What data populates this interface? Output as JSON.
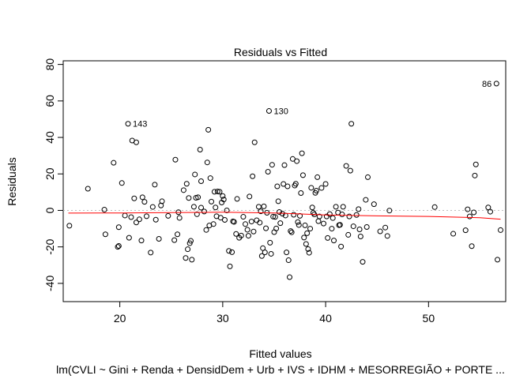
{
  "chart_data": {
    "type": "scatter",
    "title": "Residuals vs Fitted",
    "xlabel": "Fitted values",
    "ylabel": "Residuals",
    "caption": "lm(CVLI ~ Gini + Renda + DensidDem + Urb + IVS + IDHM + MESORREGIÃO + PORTE ...",
    "xlim": [
      14.5,
      57.5
    ],
    "ylim": [
      -50,
      82
    ],
    "x_ticks": [
      20,
      30,
      40,
      50
    ],
    "x_tick_labels": [
      "20",
      "30",
      "40",
      "50"
    ],
    "y_ticks": [
      -40,
      -20,
      0,
      20,
      40,
      60,
      80
    ],
    "y_tick_labels": [
      "-40",
      "-20",
      "0",
      "20",
      "40",
      "60",
      "80"
    ],
    "grid": false,
    "reference_line": {
      "y": 0,
      "style": "dotted",
      "color": "#bebebe"
    },
    "smoother_color": "#ff0000",
    "smoother": [
      [
        15,
        -1.5
      ],
      [
        20,
        -1.4
      ],
      [
        25,
        -1.2
      ],
      [
        30,
        -1.0
      ],
      [
        35,
        -1.4
      ],
      [
        40,
        -2.5
      ],
      [
        45,
        -3.0
      ],
      [
        50,
        -3.3
      ],
      [
        55,
        -4.0
      ],
      [
        57,
        -4.8
      ]
    ],
    "annotations": [
      {
        "label": "86",
        "x": 56.6,
        "y": 69.5
      },
      {
        "label": "130",
        "x": 34.5,
        "y": 54.5
      },
      {
        "label": "143",
        "x": 20.8,
        "y": 47.5
      }
    ],
    "points": [
      [
        15.1,
        -8.4
      ],
      [
        16.9,
        11.9
      ],
      [
        18.5,
        0.4
      ],
      [
        18.6,
        -13.1
      ],
      [
        19.4,
        26.1
      ],
      [
        19.8,
        -20.0
      ],
      [
        19.9,
        -19.5
      ],
      [
        19.9,
        -9.2
      ],
      [
        20.2,
        15.0
      ],
      [
        20.5,
        -2.8
      ],
      [
        20.8,
        47.5
      ],
      [
        20.9,
        -15.0
      ],
      [
        21.1,
        -3.7
      ],
      [
        21.2,
        38.3
      ],
      [
        21.4,
        6.6
      ],
      [
        21.6,
        37.3
      ],
      [
        21.6,
        -6.6
      ],
      [
        21.9,
        -4.9
      ],
      [
        22.1,
        -16.5
      ],
      [
        22.2,
        7.2
      ],
      [
        22.4,
        4.7
      ],
      [
        22.6,
        -3.2
      ],
      [
        23.0,
        -23.1
      ],
      [
        23.2,
        1.9
      ],
      [
        23.4,
        14.1
      ],
      [
        23.5,
        -5.1
      ],
      [
        23.8,
        -15.6
      ],
      [
        24.0,
        2.7
      ],
      [
        24.1,
        5.0
      ],
      [
        24.7,
        -3.0
      ],
      [
        25.3,
        -16.3
      ],
      [
        25.4,
        27.8
      ],
      [
        25.6,
        -13.1
      ],
      [
        25.7,
        -1.0
      ],
      [
        25.8,
        -4.1
      ],
      [
        26.2,
        11.1
      ],
      [
        26.4,
        -26.1
      ],
      [
        26.5,
        14.6
      ],
      [
        26.6,
        -21.3
      ],
      [
        26.7,
        6.8
      ],
      [
        26.8,
        -18.0
      ],
      [
        26.9,
        -16.7
      ],
      [
        27.0,
        -27.0
      ],
      [
        27.2,
        2.0
      ],
      [
        27.3,
        19.7
      ],
      [
        27.4,
        6.9
      ],
      [
        27.5,
        -2.1
      ],
      [
        27.6,
        7.2
      ],
      [
        27.8,
        33.3
      ],
      [
        27.9,
        16.0
      ],
      [
        27.9,
        1.5
      ],
      [
        28.2,
        -0.6
      ],
      [
        28.4,
        -10.7
      ],
      [
        28.5,
        26.3
      ],
      [
        28.6,
        44.2
      ],
      [
        28.7,
        -8.3
      ],
      [
        28.8,
        17.7
      ],
      [
        28.9,
        4.8
      ],
      [
        29.1,
        -7.5
      ],
      [
        29.2,
        10.2
      ],
      [
        29.3,
        1.6
      ],
      [
        29.4,
        -3.2
      ],
      [
        29.5,
        10.4
      ],
      [
        29.7,
        10.2
      ],
      [
        29.8,
        -4.0
      ],
      [
        29.9,
        4.3
      ],
      [
        30.0,
        7.9
      ],
      [
        30.1,
        6.0
      ],
      [
        30.2,
        -5.2
      ],
      [
        30.4,
        0.0
      ],
      [
        30.6,
        -22.2
      ],
      [
        30.7,
        -30.7
      ],
      [
        30.9,
        -22.9
      ],
      [
        31.0,
        -6.0
      ],
      [
        31.1,
        -6.3
      ],
      [
        31.3,
        -12.9
      ],
      [
        31.4,
        6.3
      ],
      [
        31.6,
        -15.0
      ],
      [
        31.8,
        -13.8
      ],
      [
        32.0,
        -3.5
      ],
      [
        32.2,
        -7.5
      ],
      [
        32.4,
        -10.6
      ],
      [
        32.5,
        -13.9
      ],
      [
        32.6,
        7.6
      ],
      [
        32.8,
        -6.1
      ],
      [
        32.9,
        18.7
      ],
      [
        33.0,
        -11.6
      ],
      [
        33.1,
        37.3
      ],
      [
        33.3,
        -5.4
      ],
      [
        33.5,
        2.0
      ],
      [
        33.6,
        -6.7
      ],
      [
        33.7,
        -0.5
      ],
      [
        33.8,
        -25.0
      ],
      [
        33.9,
        -20.7
      ],
      [
        34.0,
        2.2
      ],
      [
        34.1,
        -23.0
      ],
      [
        34.2,
        -9.8
      ],
      [
        34.3,
        -1.3
      ],
      [
        34.4,
        21.2
      ],
      [
        34.5,
        54.5
      ],
      [
        34.6,
        -17.7
      ],
      [
        34.7,
        -23.8
      ],
      [
        34.8,
        25.0
      ],
      [
        34.9,
        -3.4
      ],
      [
        35.0,
        -11.9
      ],
      [
        35.1,
        -3.6
      ],
      [
        35.2,
        -9.9
      ],
      [
        35.3,
        13.2
      ],
      [
        35.4,
        5.0
      ],
      [
        35.5,
        -0.9
      ],
      [
        35.6,
        -7.0
      ],
      [
        35.8,
        -1.8
      ],
      [
        35.9,
        14.5
      ],
      [
        36.0,
        24.8
      ],
      [
        36.1,
        -2.8
      ],
      [
        36.2,
        -23.0
      ],
      [
        36.3,
        13.2
      ],
      [
        36.4,
        -27.3
      ],
      [
        36.5,
        -36.6
      ],
      [
        36.6,
        -11.3
      ],
      [
        36.7,
        -12.0
      ],
      [
        36.8,
        28.2
      ],
      [
        36.9,
        -2.4
      ],
      [
        37.0,
        13.6
      ],
      [
        37.1,
        14.6
      ],
      [
        37.2,
        27.0
      ],
      [
        37.3,
        -6.4
      ],
      [
        37.4,
        -8.0
      ],
      [
        37.5,
        -3.0
      ],
      [
        37.6,
        9.5
      ],
      [
        37.7,
        31.3
      ],
      [
        37.8,
        19.3
      ],
      [
        37.9,
        -14.9
      ],
      [
        38.0,
        -8.2
      ],
      [
        38.1,
        -18.4
      ],
      [
        38.2,
        -12.5
      ],
      [
        38.3,
        -21.2
      ],
      [
        38.4,
        -23.2
      ],
      [
        38.5,
        -10.0
      ],
      [
        38.6,
        12.4
      ],
      [
        38.7,
        1.6
      ],
      [
        38.8,
        -1.3
      ],
      [
        38.9,
        -2.2
      ],
      [
        39.0,
        9.6
      ],
      [
        39.1,
        10.8
      ],
      [
        39.2,
        18.2
      ],
      [
        39.3,
        -5.9
      ],
      [
        39.4,
        -3.3
      ],
      [
        39.6,
        12.3
      ],
      [
        39.8,
        -7.2
      ],
      [
        40.0,
        14.5
      ],
      [
        40.1,
        -3.3
      ],
      [
        40.2,
        -15.1
      ],
      [
        40.4,
        -2.0
      ],
      [
        40.6,
        -10.0
      ],
      [
        40.7,
        -4.2
      ],
      [
        40.8,
        -16.5
      ],
      [
        41.0,
        2.0
      ],
      [
        41.2,
        -1.2
      ],
      [
        41.3,
        -8.1
      ],
      [
        41.4,
        -7.9
      ],
      [
        41.5,
        -19.8
      ],
      [
        41.6,
        -2.2
      ],
      [
        41.7,
        2.0
      ],
      [
        42.0,
        24.4
      ],
      [
        42.2,
        -13.4
      ],
      [
        42.3,
        -3.3
      ],
      [
        42.4,
        21.8
      ],
      [
        42.5,
        47.5
      ],
      [
        42.7,
        -8.7
      ],
      [
        43.0,
        -2.5
      ],
      [
        43.2,
        0.7
      ],
      [
        43.3,
        -10.4
      ],
      [
        43.4,
        -14.3
      ],
      [
        43.6,
        -28.2
      ],
      [
        43.9,
        5.8
      ],
      [
        44.0,
        -9.1
      ],
      [
        44.1,
        18.2
      ],
      [
        44.7,
        3.4
      ],
      [
        45.3,
        -11.5
      ],
      [
        45.8,
        -9.4
      ],
      [
        46.0,
        -14.0
      ],
      [
        46.2,
        -0.1
      ],
      [
        50.6,
        1.8
      ],
      [
        52.4,
        -12.8
      ],
      [
        53.6,
        -10.9
      ],
      [
        53.8,
        0.6
      ],
      [
        54.0,
        -3.3
      ],
      [
        54.2,
        -19.6
      ],
      [
        54.4,
        -1.1
      ],
      [
        54.5,
        19.1
      ],
      [
        54.6,
        25.2
      ],
      [
        55.8,
        1.6
      ],
      [
        56.0,
        -0.7
      ],
      [
        56.6,
        69.5
      ],
      [
        56.7,
        -27.0
      ],
      [
        57.0,
        -10.8
      ]
    ]
  }
}
